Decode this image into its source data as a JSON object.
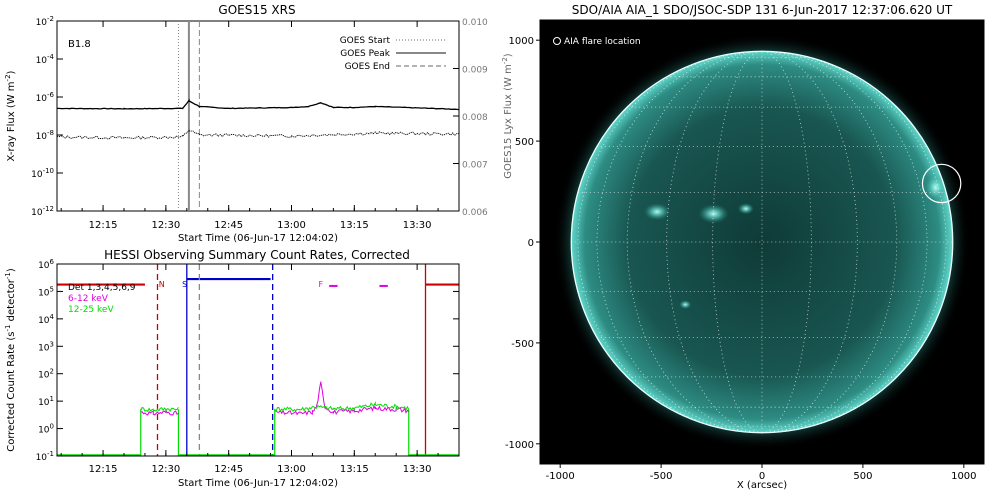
{
  "chart_data": [
    {
      "type": "line",
      "title": "GOES15 XRS",
      "class_label": "B1.8",
      "xlabel": "Start Time (06-Jun-17 12:04:02)",
      "ylabel": "X-ray Flux (W m",
      "ylabel_sup": "-2",
      "ylabel_close": ")",
      "ylabel_right": "GOES15 Lyx Flux (W m",
      "ylabel_right_sup": "-2",
      "ylabel_right_close": ")",
      "x_ticks": [
        "12:15",
        "12:30",
        "12:45",
        "13:00",
        "13:15",
        "13:30"
      ],
      "x_tick_minutes": [
        15,
        30,
        45,
        60,
        75,
        90
      ],
      "xlim_minutes": [
        4,
        100
      ],
      "y_ticks": [
        {
          "base": "10",
          "exp": "-2",
          "log": -2
        },
        {
          "base": "10",
          "exp": "-4",
          "log": -4
        },
        {
          "base": "10",
          "exp": "-6",
          "log": -6
        },
        {
          "base": "10",
          "exp": "-8",
          "log": -8
        },
        {
          "base": "10",
          "exp": "-10",
          "log": -10
        },
        {
          "base": "10",
          "exp": "-12",
          "log": -12
        }
      ],
      "ylim_log": [
        -12,
        -2
      ],
      "y_right_ticks": [
        "0.010",
        "0.009",
        "0.008",
        "0.007",
        "0.006"
      ],
      "y_right_values": [
        0.01,
        0.009,
        0.008,
        0.007,
        0.006
      ],
      "legend": [
        {
          "label": "GOES Start",
          "style": "dotted"
        },
        {
          "label": "GOES Peak",
          "style": "solid"
        },
        {
          "label": "GOES End",
          "style": "dashed"
        }
      ],
      "events_minutes": {
        "start": 33,
        "peak": 35.5,
        "end": 38
      },
      "series": [
        {
          "key": "long",
          "color": "#000000",
          "x_minutes": [
            4,
            20,
            34,
            35.5,
            38,
            45,
            60,
            64,
            67,
            70,
            75,
            80,
            100
          ],
          "log_flux": [
            -6.6,
            -6.62,
            -6.6,
            -6.2,
            -6.5,
            -6.6,
            -6.55,
            -6.5,
            -6.3,
            -6.55,
            -6.55,
            -6.5,
            -6.65
          ]
        },
        {
          "key": "short",
          "color": "#000000",
          "x_minutes": [
            4,
            20,
            34,
            35.5,
            38,
            60,
            80,
            100
          ],
          "log_flux": [
            -8.1,
            -8.15,
            -8.1,
            -7.75,
            -8.0,
            -8.05,
            -7.9,
            -7.95
          ]
        }
      ]
    },
    {
      "type": "line",
      "title": "HESSI Observing Summary Count Rates, Corrected",
      "xlabel": "Start Time (06-Jun-17 12:04:02)",
      "ylabel": "Corrected Count Rate (s",
      "ylabel_sup": "-1",
      "ylabel_mid": " detector",
      "ylabel_sup2": "-1",
      "ylabel_close": ")",
      "x_ticks": [
        "12:15",
        "12:30",
        "12:45",
        "13:00",
        "13:15",
        "13:30"
      ],
      "x_tick_minutes": [
        15,
        30,
        45,
        60,
        75,
        90
      ],
      "xlim_minutes": [
        4,
        100
      ],
      "y_ticks": [
        {
          "base": "10",
          "exp": "6",
          "log": 6
        },
        {
          "base": "10",
          "exp": "5",
          "log": 5
        },
        {
          "base": "10",
          "exp": "4",
          "log": 4
        },
        {
          "base": "10",
          "exp": "3",
          "log": 3
        },
        {
          "base": "10",
          "exp": "2",
          "log": 2
        },
        {
          "base": "10",
          "exp": "1",
          "log": 1
        },
        {
          "base": "10",
          "exp": "0",
          "log": 0
        },
        {
          "base": "10",
          "exp": "-1",
          "log": -1
        }
      ],
      "ylim_log": [
        -1,
        6
      ],
      "legend": [
        {
          "label": "Det 1,3,4,5,6,9",
          "color": "#000000"
        },
        {
          "label": "6-12 keV",
          "color": "#e000e0"
        },
        {
          "label": "12-25 keV",
          "color": "#00dd00"
        }
      ],
      "flag_labels": [
        {
          "text": "N",
          "color": "#cc0000",
          "x_minutes": 29
        },
        {
          "text": "S",
          "color": "#0000cc",
          "x_minutes": 34.5
        },
        {
          "text": "F",
          "color": "#e000e0",
          "x_minutes": 67
        }
      ],
      "flag_bars": [
        {
          "color": "#e000e0",
          "x_minutes": [
            69,
            71
          ],
          "log": 5.2
        },
        {
          "color": "#e000e0",
          "x_minutes": [
            81,
            83
          ],
          "log": 5.2
        }
      ],
      "night_bars": [
        {
          "color": "#cc0000",
          "x_minutes": [
            4,
            25
          ],
          "log": 5.25
        },
        {
          "color": "#cc0000",
          "x_minutes": [
            92,
            100
          ],
          "log": 5.25
        }
      ],
      "saa_bar": {
        "color": "#0000cc",
        "x_minutes": [
          35,
          55
        ],
        "log": 5.45
      },
      "vlines": [
        {
          "color": "#cc0000",
          "style": "dashed",
          "x_minutes": 28
        },
        {
          "color": "#0000cc",
          "style": "solid",
          "x_minutes": 35
        },
        {
          "color": "#888888",
          "style": "dashed",
          "x_minutes": 38
        },
        {
          "color": "#0000cc",
          "style": "dashed",
          "x_minutes": 55.5
        },
        {
          "color": "#cc0000",
          "style": "solid",
          "x_minutes": 92
        }
      ],
      "series": [
        {
          "name": "6-12 keV",
          "color": "#e000e0",
          "segments": [
            {
              "x_minutes": [
                24,
                27,
                30,
                33
              ],
              "log": [
                0.6,
                0.55,
                0.6,
                0.55
              ]
            },
            {
              "x_minutes": [
                56,
                62,
                65,
                66,
                67,
                68,
                70,
                75,
                80,
                85,
                88
              ],
              "log": [
                0.6,
                0.55,
                0.6,
                0.8,
                1.65,
                0.8,
                0.6,
                0.65,
                0.75,
                0.7,
                0.65
              ]
            }
          ]
        },
        {
          "name": "12-25 keV",
          "color": "#00dd00",
          "segments": [
            {
              "x_minutes": [
                24,
                27,
                30,
                33
              ],
              "log": [
                0.72,
                0.68,
                0.72,
                0.7
              ]
            },
            {
              "x_minutes": [
                56,
                62,
                66,
                70,
                75,
                80,
                85,
                88
              ],
              "log": [
                0.72,
                0.7,
                0.8,
                0.72,
                0.75,
                0.88,
                0.8,
                0.75
              ]
            }
          ]
        }
      ]
    },
    {
      "type": "scatter",
      "title": "SDO/AIA AIA_1 SDO/JSOC-SDP 131  6-Jun-2017 12:37:06.620 UT",
      "annotation": "AIA flare location",
      "xlabel": "X (arcsec)",
      "x_ticks": [
        "-1000",
        "-500",
        "0",
        "500",
        "1000"
      ],
      "x_tick_values": [
        -1000,
        -500,
        0,
        500,
        1000
      ],
      "y_ticks": [
        "1000",
        "500",
        "0",
        "-500",
        "-1000"
      ],
      "y_tick_values": [
        1000,
        500,
        0,
        -500,
        -1000
      ],
      "xlim": [
        -1100,
        1100
      ],
      "ylim": [
        -1100,
        1100
      ],
      "solar_radius_arcsec": 945,
      "flare_location": {
        "x": 890,
        "y": 290,
        "r": 95
      },
      "colors": {
        "background": "#000000",
        "disk": "#3aa59a",
        "limb": "#eeffff"
      }
    }
  ]
}
